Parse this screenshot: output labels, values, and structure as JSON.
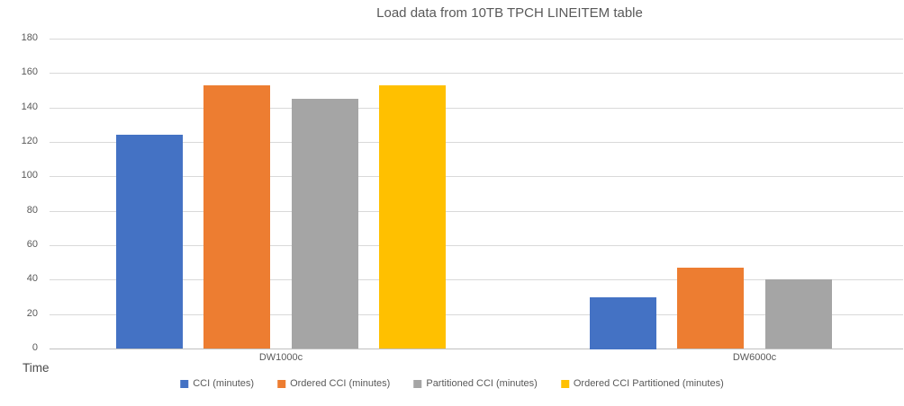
{
  "chart_data": {
    "type": "bar",
    "title": "Load data from 10TB TPCH LINEITEM table",
    "axis_title": "Time",
    "categories": [
      "DW1000c",
      "DW6000c"
    ],
    "series": [
      {
        "name": "CCI (minutes)",
        "color": "#4472C4",
        "values": [
          124,
          30
        ]
      },
      {
        "name": "Ordered CCI (minutes)",
        "color": "#ED7D31",
        "values": [
          153,
          47
        ]
      },
      {
        "name": "Partitioned CCI (minutes)",
        "color": "#A5A5A5",
        "values": [
          145,
          40
        ]
      },
      {
        "name": "Ordered CCI Partitioned (minutes)",
        "color": "#FFC000",
        "values": [
          153,
          null
        ]
      }
    ],
    "ylim": [
      0,
      180
    ],
    "ytick_step": 20,
    "ytick_labels": [
      "0",
      "20",
      "40",
      "60",
      "80",
      "100",
      "120",
      "140",
      "160",
      "180"
    ],
    "grid": "horizontal",
    "legend_position": "bottom",
    "colors": {
      "background": "#FFFFFF",
      "title_text": "#595959",
      "axis_text": "#595959",
      "gridline": "#D9D9D9",
      "axis_line": "#BFBFBF"
    }
  }
}
